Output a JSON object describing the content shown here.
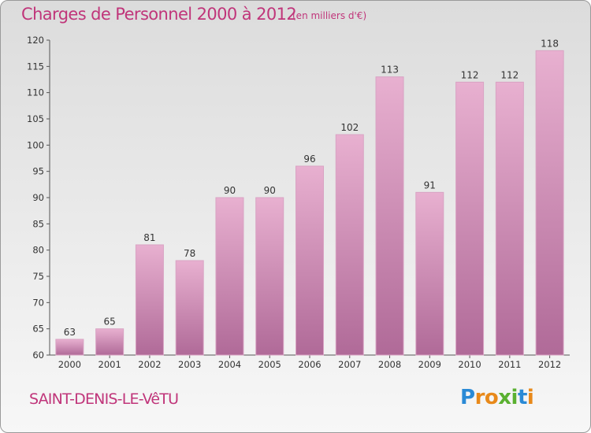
{
  "title": "Charges de Personnel 2000 à 2012",
  "subtitle": "(en milliers d'€)",
  "town": "SAINT-DENIS-LE-VêTU",
  "logo": {
    "letters": [
      "P",
      "r",
      "o",
      "x",
      "i",
      "t",
      "i"
    ],
    "colors": [
      "#2a8ad6",
      "#e8891a",
      "#e8891a",
      "#5ab030",
      "#5ab030",
      "#2a8ad6",
      "#e8891a"
    ]
  },
  "colors": {
    "accent": "#c0357a",
    "bar_top": "#e8b0d0",
    "bar_bottom": "#b06a98"
  },
  "chart_data": {
    "type": "bar",
    "categories": [
      "2000",
      "2001",
      "2002",
      "2003",
      "2004",
      "2005",
      "2006",
      "2007",
      "2008",
      "2009",
      "2010",
      "2011",
      "2012"
    ],
    "values": [
      63,
      65,
      81,
      78,
      90,
      90,
      96,
      102,
      113,
      91,
      112,
      112,
      118
    ],
    "title": "Charges de Personnel 2000 à 2012",
    "ylim": [
      60,
      120
    ],
    "yticks": [
      60,
      65,
      70,
      75,
      80,
      85,
      90,
      95,
      100,
      105,
      110,
      115,
      120
    ],
    "grid": false
  }
}
